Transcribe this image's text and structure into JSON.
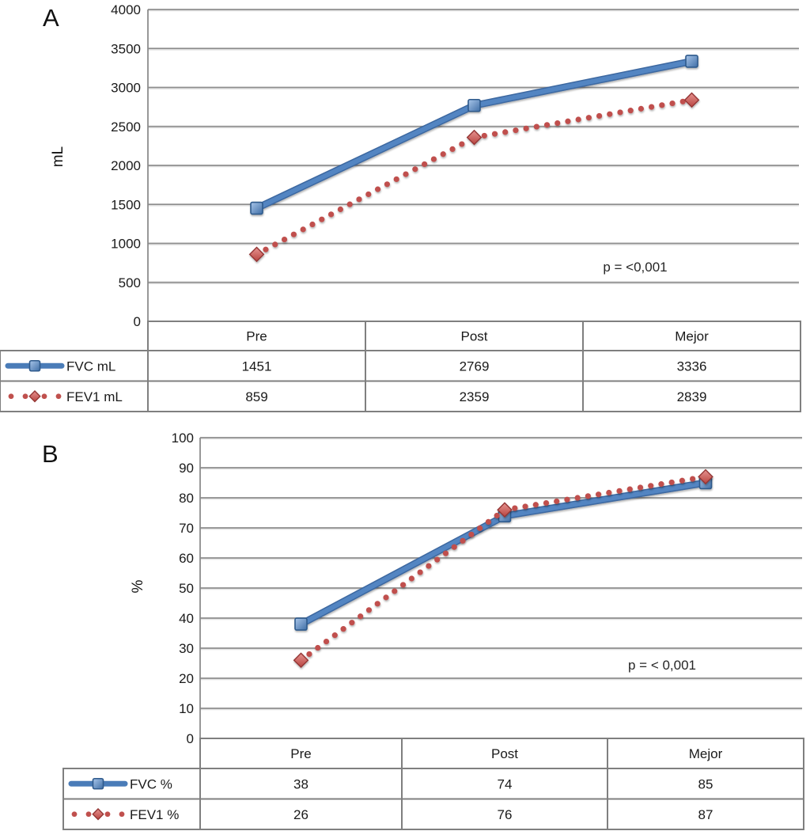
{
  "chart_data": [
    {
      "type": "line",
      "panel_label": "A",
      "ylabel": "mL",
      "ylim": [
        0,
        4000
      ],
      "yticks": [
        0,
        500,
        1000,
        1500,
        2000,
        2500,
        3000,
        3500,
        4000
      ],
      "categories": [
        "Pre",
        "Post",
        "Mejor"
      ],
      "series": [
        {
          "name": "FVC mL",
          "values": [
            1451,
            2769,
            3336
          ],
          "color": "#4f81bd",
          "line_style": "solid",
          "marker": "square"
        },
        {
          "name": "FEV1 mL",
          "values": [
            859,
            2359,
            2839
          ],
          "color": "#c0504d",
          "line_style": "dotted",
          "marker": "diamond"
        }
      ],
      "annotation": "p = <0,001",
      "grid": "horizontal",
      "legend_position": "table-left",
      "data_table_shown": true
    },
    {
      "type": "line",
      "panel_label": "B",
      "ylabel": "%",
      "ylim": [
        0,
        100
      ],
      "yticks": [
        0,
        10,
        20,
        30,
        40,
        50,
        60,
        70,
        80,
        90,
        100
      ],
      "categories": [
        "Pre",
        "Post",
        "Mejor"
      ],
      "series": [
        {
          "name": "FVC %",
          "values": [
            38,
            74,
            85
          ],
          "color": "#4f81bd",
          "line_style": "solid",
          "marker": "square"
        },
        {
          "name": "FEV1 %",
          "values": [
            26,
            76,
            87
          ],
          "color": "#c0504d",
          "line_style": "dotted",
          "marker": "diamond"
        }
      ],
      "annotation": "p = < 0,001",
      "grid": "horizontal",
      "legend_position": "table-left",
      "data_table_shown": true
    }
  ],
  "colors": {
    "fvc_blue": "#4f81bd",
    "fev1_red": "#c0504d",
    "gridline": "#8c8c8c",
    "table_border": "#7f7f7f",
    "text": "#1a1a1a"
  }
}
